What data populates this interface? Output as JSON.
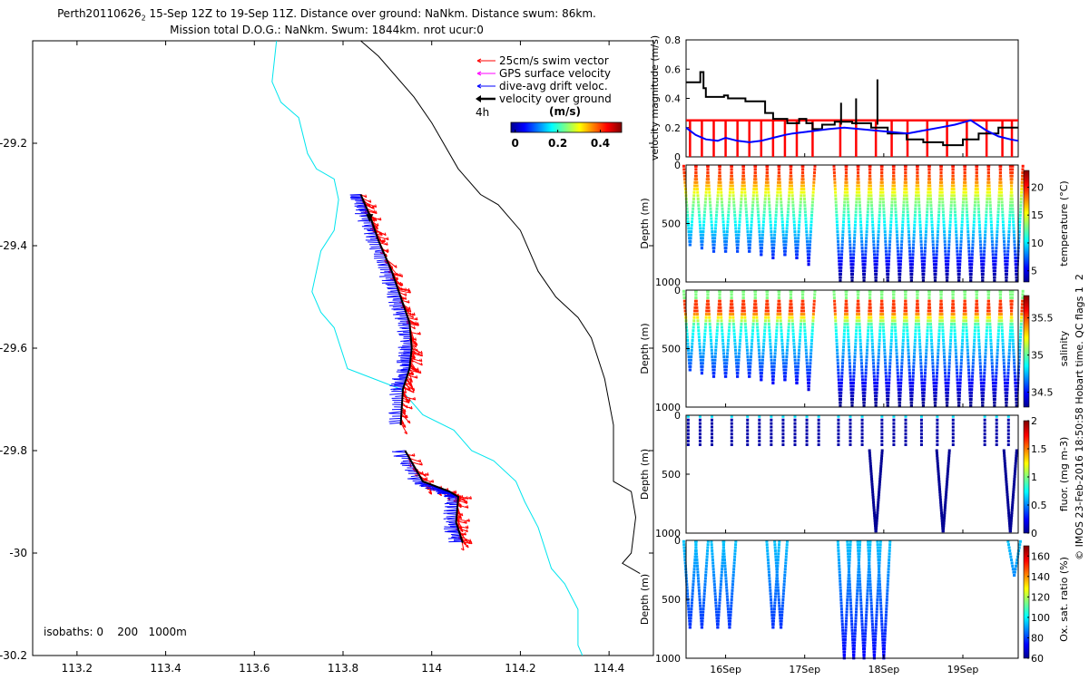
{
  "title": {
    "line1_pre": "Perth20110626",
    "line1_sub": "2",
    "line1_post": " 15-Sep 12Z to 19-Sep 11Z. Distance over ground: NaNkm. Distance swum: 86km.",
    "line2": "Mission total D.O.G.: NaNkm. Swum: 1844km. nrot ucur:0"
  },
  "copyright": "© IMOS 23-Feb-2016 18:50:58 Hobart time. QC flags 1  2",
  "colors": {
    "swim_vector": "#ff0000",
    "gps_surface": "#ff00ff",
    "drift": "#0000ff",
    "ground": "#000000",
    "isobath_200": "#00e5ee",
    "isobath_1000": "#000000"
  },
  "chart_data": [
    {
      "id": "map",
      "type": "scatter",
      "subtype": "glider-track-map",
      "xlim": [
        113.1,
        114.5
      ],
      "ylim": [
        -30.2,
        -29.0
      ],
      "xticks": [
        "113.2",
        "113.4",
        "113.6",
        "113.8",
        "114",
        "114.2",
        "114.4"
      ],
      "xtick_values": [
        113.2,
        113.4,
        113.6,
        113.8,
        114.0,
        114.2,
        114.4
      ],
      "yticks": [
        "-29.2",
        "-29.4",
        "-29.6",
        "-29.8",
        "-30",
        "-30.2"
      ],
      "ytick_values": [
        -29.2,
        -29.4,
        -29.6,
        -29.8,
        -30.0,
        -30.2
      ],
      "legend": {
        "position": "top-right",
        "entries": [
          "25cm/s swim vector",
          "GPS surface velocity",
          "dive-avg drift veloc.",
          "velocity over ground"
        ],
        "timestep_label": "4h",
        "colorbar_label": "(m/s)",
        "colorbar_ticks": [
          "0",
          "0.2",
          "0.4"
        ],
        "colorbar_tick_values": [
          0,
          0.2,
          0.4
        ],
        "colorbar_range": [
          -0.02,
          0.5
        ]
      },
      "isobath_label": "isobaths: 0    200   1000m",
      "isobath_200": [
        [
          113.65,
          -29.0
        ],
        [
          113.64,
          -29.08
        ],
        [
          113.66,
          -29.12
        ],
        [
          113.7,
          -29.15
        ],
        [
          113.72,
          -29.22
        ],
        [
          113.74,
          -29.25
        ],
        [
          113.78,
          -29.27
        ],
        [
          113.79,
          -29.31
        ],
        [
          113.78,
          -29.37
        ],
        [
          113.75,
          -29.41
        ],
        [
          113.73,
          -29.49
        ],
        [
          113.75,
          -29.53
        ],
        [
          113.78,
          -29.56
        ],
        [
          113.81,
          -29.64
        ],
        [
          113.87,
          -29.66
        ],
        [
          113.93,
          -29.68
        ],
        [
          113.98,
          -29.73
        ],
        [
          114.05,
          -29.76
        ],
        [
          114.09,
          -29.8
        ],
        [
          114.14,
          -29.82
        ],
        [
          114.19,
          -29.86
        ],
        [
          114.21,
          -29.9
        ],
        [
          114.24,
          -29.95
        ],
        [
          114.27,
          -30.03
        ],
        [
          114.3,
          -30.06
        ],
        [
          114.33,
          -30.11
        ],
        [
          114.33,
          -30.18
        ],
        [
          114.34,
          -30.2
        ]
      ],
      "isobath_1000": [
        [
          113.84,
          -29.0
        ],
        [
          113.88,
          -29.03
        ],
        [
          113.96,
          -29.11
        ],
        [
          114.0,
          -29.16
        ],
        [
          114.06,
          -29.25
        ],
        [
          114.11,
          -29.3
        ],
        [
          114.15,
          -29.32
        ],
        [
          114.2,
          -29.37
        ],
        [
          114.24,
          -29.45
        ],
        [
          114.28,
          -29.5
        ],
        [
          114.33,
          -29.54
        ],
        [
          114.36,
          -29.58
        ],
        [
          114.39,
          -29.66
        ],
        [
          114.41,
          -29.75
        ],
        [
          114.41,
          -29.86
        ],
        [
          114.45,
          -29.88
        ],
        [
          114.46,
          -29.93
        ],
        [
          114.45,
          -30.0
        ],
        [
          114.43,
          -30.02
        ],
        [
          114.47,
          -30.04
        ]
      ],
      "track": [
        [
          113.84,
          -29.3
        ],
        [
          113.86,
          -29.34
        ],
        [
          113.88,
          -29.39
        ],
        [
          113.91,
          -29.45
        ],
        [
          113.93,
          -29.5
        ],
        [
          113.95,
          -29.55
        ],
        [
          113.955,
          -29.6
        ],
        [
          113.95,
          -29.64
        ],
        [
          113.935,
          -29.68
        ],
        [
          113.93,
          -29.75
        ],
        [
          113.94,
          -29.8
        ],
        [
          113.98,
          -29.86
        ],
        [
          114.04,
          -29.88
        ],
        [
          114.06,
          -29.89
        ],
        [
          114.055,
          -29.94
        ],
        [
          114.07,
          -29.98
        ]
      ],
      "gap": [
        9,
        10
      ]
    },
    {
      "id": "velocity",
      "type": "line",
      "ylabel": "velocity magnitude (m/s)",
      "xlim": [
        15.5,
        19.7
      ],
      "ylim": [
        0,
        0.8
      ],
      "yticks": [
        "0",
        "0.2",
        "0.4",
        "0.6",
        "0.8"
      ],
      "ytick_values": [
        0,
        0.2,
        0.4,
        0.6,
        0.8
      ],
      "series": [
        {
          "color": "#000000",
          "x": [
            15.5,
            15.68,
            15.68,
            15.72,
            15.72,
            15.75,
            15.75,
            15.98,
            15.98,
            16.03,
            16.03,
            16.25,
            16.25,
            16.5,
            16.5,
            16.6,
            16.6,
            16.78,
            16.78,
            16.93,
            16.93,
            17.02,
            17.02,
            17.1,
            17.1,
            17.22,
            17.22,
            17.38,
            17.38,
            17.6,
            17.6,
            17.84,
            17.84,
            18.05,
            18.05,
            18.29,
            18.29,
            18.5,
            18.5,
            18.75,
            18.75,
            19.0,
            19.0,
            19.2,
            19.2,
            19.45,
            19.45,
            19.7
          ],
          "y": [
            0.51,
            0.51,
            0.58,
            0.58,
            0.47,
            0.47,
            0.41,
            0.41,
            0.42,
            0.42,
            0.4,
            0.4,
            0.38,
            0.38,
            0.3,
            0.3,
            0.26,
            0.26,
            0.23,
            0.23,
            0.26,
            0.26,
            0.23,
            0.23,
            0.19,
            0.19,
            0.22,
            0.22,
            0.24,
            0.24,
            0.23,
            0.23,
            0.2,
            0.2,
            0.16,
            0.16,
            0.12,
            0.12,
            0.1,
            0.1,
            0.08,
            0.08,
            0.12,
            0.12,
            0.16,
            0.16,
            0.2,
            0.2
          ]
        },
        {
          "color": "#0000ff",
          "x": [
            15.5,
            15.62,
            15.75,
            15.9,
            16.0,
            16.15,
            16.3,
            16.45,
            16.6,
            16.75,
            16.85,
            17.0,
            17.15,
            17.3,
            17.5,
            17.7,
            17.9,
            18.1,
            18.3,
            18.5,
            18.7,
            18.9,
            19.1,
            19.3,
            19.45,
            19.6,
            19.7
          ],
          "y": [
            0.2,
            0.15,
            0.12,
            0.11,
            0.13,
            0.11,
            0.1,
            0.11,
            0.13,
            0.15,
            0.16,
            0.17,
            0.18,
            0.19,
            0.2,
            0.19,
            0.18,
            0.17,
            0.16,
            0.18,
            0.2,
            0.22,
            0.25,
            0.18,
            0.14,
            0.12,
            0.11
          ]
        }
      ],
      "swim_base": 0.25,
      "swim_dives_x": [
        15.55,
        15.7,
        15.85,
        16.0,
        16.15,
        16.3,
        16.45,
        16.6,
        16.75,
        16.9,
        17.1,
        17.45,
        17.65,
        17.9,
        18.1,
        18.3,
        18.55,
        18.8,
        19.05,
        19.3,
        19.5,
        19.62
      ],
      "spikes_x": [
        17.46,
        17.65,
        17.92
      ],
      "spikes_y": [
        0.37,
        0.4,
        0.53
      ]
    },
    {
      "id": "temperature",
      "type": "scatter",
      "ylabel": "Depth (m)",
      "ylim": [
        0,
        1000
      ],
      "yticks": [
        "0",
        "500",
        "1000"
      ],
      "ytick_values": [
        0,
        500,
        1000
      ],
      "colorbar_label": "temperature (°C)",
      "colorbar_ticks": [
        "5",
        "10",
        "15",
        "20"
      ],
      "colorbar_tick_values": [
        5,
        10,
        15,
        20
      ],
      "colorbar_range": [
        3,
        23
      ]
    },
    {
      "id": "salinity",
      "type": "scatter",
      "ylabel": "Depth (m)",
      "ylim": [
        0,
        1000
      ],
      "yticks": [
        "0",
        "500",
        "1000"
      ],
      "ytick_values": [
        0,
        500,
        1000
      ],
      "colorbar_label": "salinity",
      "colorbar_ticks": [
        "34.5",
        "35",
        "35.5"
      ],
      "colorbar_tick_values": [
        34.5,
        35.0,
        35.5
      ],
      "colorbar_range": [
        34.3,
        35.8
      ]
    },
    {
      "id": "fluor",
      "type": "scatter",
      "ylabel": "Depth (m)",
      "ylim": [
        0,
        1000
      ],
      "yticks": [
        "0",
        "500",
        "1000"
      ],
      "ytick_values": [
        0,
        500,
        1000
      ],
      "colorbar_label": "fluor. (mg m-3)",
      "colorbar_ticks": [
        "0",
        "0.5",
        "1",
        "1.5",
        "2"
      ],
      "colorbar_tick_values": [
        0,
        0.5,
        1.0,
        1.5,
        2.0
      ],
      "colorbar_range": [
        0,
        2
      ]
    },
    {
      "id": "oxygen",
      "type": "scatter",
      "ylabel": "Depth (m)",
      "ylim": [
        0,
        1000
      ],
      "yticks": [
        "0",
        "500",
        "1000"
      ],
      "ytick_values": [
        0,
        500,
        1000
      ],
      "xticks": [
        "16Sep",
        "17Sep",
        "18Sep",
        "19Sep"
      ],
      "xtick_values": [
        16,
        17,
        18,
        19
      ],
      "colorbar_label": "Ox. sat. ratio (%)",
      "colorbar_ticks": [
        "60",
        "80",
        "100",
        "120",
        "140",
        "160"
      ],
      "colorbar_tick_values": [
        60,
        80,
        100,
        120,
        140,
        160
      ],
      "colorbar_range": [
        60,
        170
      ]
    }
  ],
  "profiles": {
    "time_range": [
      15.5,
      19.7
    ],
    "dives_x": [
      15.55,
      15.7,
      15.85,
      16.0,
      16.15,
      16.3,
      16.45,
      16.6,
      16.75,
      16.9,
      17.05,
      17.45,
      17.6,
      17.75,
      17.9,
      18.05,
      18.2,
      18.35,
      18.5,
      18.65,
      18.8,
      18.95,
      19.1,
      19.25,
      19.4,
      19.55,
      19.68
    ],
    "dives_max_depth_m": [
      700,
      720,
      750,
      760,
      740,
      760,
      780,
      800,
      790,
      820,
      850,
      1000,
      1000,
      1000,
      1000,
      1000,
      1000,
      1000,
      1000,
      1000,
      1000,
      1000,
      1000,
      1000,
      1000,
      1000,
      1000
    ],
    "fluor_shallow_x": [
      15.55,
      15.7,
      15.85,
      16.1,
      16.3,
      16.45,
      16.6,
      16.75,
      16.9,
      17.05,
      17.2,
      17.45,
      17.6,
      17.75,
      18.0,
      18.15,
      18.3,
      18.5,
      18.7,
      18.9,
      19.3,
      19.45,
      19.6
    ],
    "fluor_deep_x": [
      17.9,
      18.75,
      19.6
    ],
    "oxygen_dives_x": [
      15.55,
      15.7,
      15.9,
      16.05,
      16.6,
      16.7,
      17.5,
      17.62,
      17.75,
      17.88,
      18.0,
      19.65
    ]
  }
}
